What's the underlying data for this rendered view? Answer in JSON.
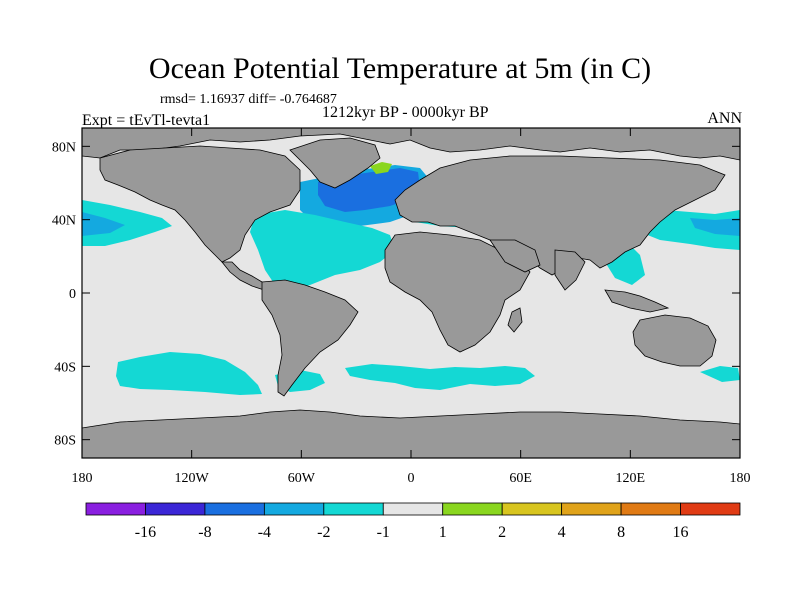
{
  "title": "Ocean Potential Temperature at 5m (in C)",
  "stats_line": "rmsd= 1.16937 diff= -0.764687",
  "left_label": "Expt = tEvTl-tevta1",
  "center_label": "1212kyr BP - 0000kyr BP",
  "right_label": "ANN",
  "colors": {
    "ocean_neutral": "#e6e6e6",
    "land": "#999999",
    "coast": "#000000"
  },
  "map": {
    "lon_ticks": [
      "180",
      "120W",
      "60W",
      "0",
      "60E",
      "120E",
      "180"
    ],
    "lat_ticks": [
      "80N",
      "40N",
      "0",
      "40S",
      "80S"
    ]
  },
  "colorbar": {
    "colors": [
      "#8a1fe0",
      "#3b26d6",
      "#1a6fe0",
      "#14a9e0",
      "#14d8d4",
      "#e6e6e6",
      "#8ad61f",
      "#d8c51f",
      "#e0a31a",
      "#e07a14",
      "#e03b14"
    ],
    "labels": [
      "-16",
      "-8",
      "-4",
      "-2",
      "-1",
      "1",
      "2",
      "4",
      "8",
      "16"
    ]
  },
  "regions": [
    {
      "name": "north-atlantic-strong",
      "color": "#1a6fe0"
    },
    {
      "name": "north-atlantic-cool",
      "color": "#14a9e0"
    },
    {
      "name": "gulf-cool",
      "color": "#14d8d4"
    },
    {
      "name": "north-pacific-cool",
      "color": "#14d8d4"
    },
    {
      "name": "kuroshio-cool",
      "color": "#14d8d4"
    },
    {
      "name": "southern-ocean-cool",
      "color": "#14d8d4"
    },
    {
      "name": "nordic-warm",
      "color": "#8ad61f"
    }
  ]
}
